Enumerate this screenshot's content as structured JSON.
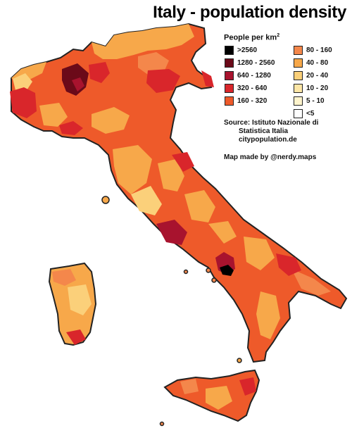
{
  "map": {
    "title": "Italy - population density",
    "legend": {
      "heading": "People per km",
      "heading_sup": "2",
      "items": [
        {
          "label": ">2560",
          "color": "#000000"
        },
        {
          "label": "80 - 160",
          "color": "#f4874b"
        },
        {
          "label": "1280 - 2560",
          "color": "#6b0a19"
        },
        {
          "label": "40 - 80",
          "color": "#f7a84a"
        },
        {
          "label": "640 - 1280",
          "color": "#a8132e"
        },
        {
          "label": "20 - 40",
          "color": "#fbd07a"
        },
        {
          "label": "320 - 640",
          "color": "#d9262b"
        },
        {
          "label": "10 - 20",
          "color": "#fde6a6"
        },
        {
          "label": "160 - 320",
          "color": "#ee5a2a"
        },
        {
          "label": "5 - 10",
          "color": "#fff4cc"
        },
        {
          "label": "",
          "color": "#ffffff"
        },
        {
          "label": "<5",
          "color": "#ffffff"
        }
      ]
    },
    "source": {
      "line1": "Source: Istituto Nazionale di",
      "line2": "Statistica Italia",
      "line3": "citypopulation.de"
    },
    "credit": "Map made by @nerdy.maps",
    "colors": {
      "outline": "#222222",
      "base": "#ee5a2a"
    }
  }
}
